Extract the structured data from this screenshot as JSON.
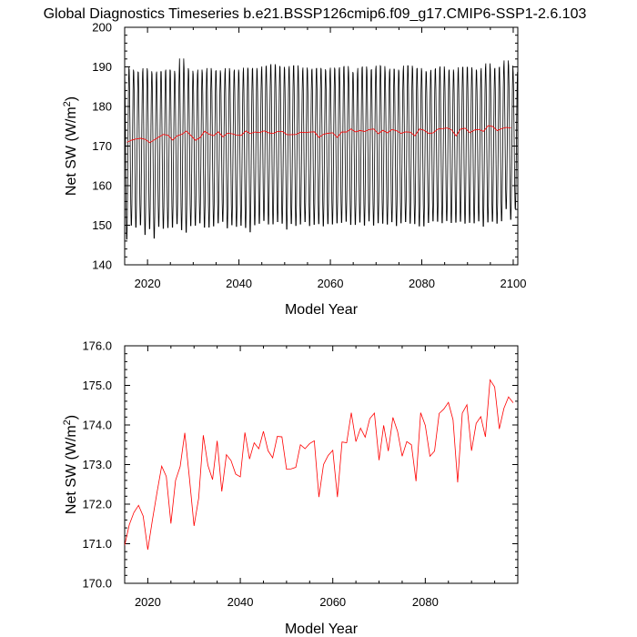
{
  "title": "Global Diagnostics Timeseries b.e21.BSSP126cmip6.f09_g17.CMIP6-SSP1-2.6.103",
  "chart_data": [
    {
      "type": "line",
      "name": "monthly-panel",
      "xlabel": "Model Year",
      "ylabel": "Net SW (W/m²)",
      "ylabel_main": "Net SW (W/m",
      "ylabel_sup": "2",
      "ylabel_tail": ")",
      "xlim": [
        2015,
        2101
      ],
      "ylim": [
        140,
        200
      ],
      "xticks": [
        "2020",
        "2040",
        "2060",
        "2080",
        "2100"
      ],
      "yticks": [
        "140",
        "150",
        "160",
        "170",
        "180",
        "190",
        "200"
      ],
      "series": [
        {
          "name": "monthly",
          "color": "#000000",
          "description": "seasonal cycle from 2015 to 2100",
          "annual_max": [
            190.6,
            190.0,
            189.4,
            189.3,
            190.4,
            189.6,
            188.9,
            189.5,
            189.5,
            190.0,
            189.7,
            188.8,
            192.9,
            190.4,
            189.7,
            188.8,
            190.0,
            189.1,
            190.4,
            189.6,
            189.8,
            189.0,
            190.4,
            189.4,
            190.0,
            189.2,
            190.5,
            190.1,
            190.4,
            189.6,
            190.8,
            190.9,
            191.4,
            190.8,
            190.7,
            190.1,
            190.9,
            191.1,
            189.6,
            190.5,
            189.8,
            190.2,
            190.4,
            190.1,
            189.6,
            190.5,
            190.0,
            190.6,
            190.9,
            189.4,
            189.0,
            190.4,
            190.8,
            189.8,
            190.1,
            191.0,
            190.9,
            189.3,
            190.2,
            190.0,
            189.5,
            191.0,
            191.0,
            190.2,
            190.4,
            189.6,
            189.2,
            189.9,
            190.3,
            190.8,
            189.6,
            190.0,
            189.2,
            190.6,
            190.6,
            190.6,
            190.0,
            189.5,
            190.4,
            191.6,
            190.1,
            190.4,
            190.7,
            192.3,
            191.0,
            189.3
          ],
          "annual_min": [
            145.7,
            149.3,
            148.8,
            149.4,
            146.9,
            148.4,
            146.0,
            149.0,
            148.5,
            148.7,
            148.8,
            149.7,
            148.1,
            147.5,
            149.2,
            149.3,
            149.9,
            148.8,
            148.8,
            149.1,
            149.9,
            150.3,
            148.6,
            149.4,
            149.0,
            149.3,
            148.7,
            147.6,
            149.4,
            149.8,
            150.5,
            149.6,
            149.6,
            150.2,
            149.8,
            148.3,
            149.7,
            149.2,
            149.6,
            150.2,
            149.2,
            149.5,
            149.7,
            149.1,
            149.7,
            149.6,
            149.9,
            150.0,
            150.3,
            149.5,
            149.5,
            150.1,
            149.3,
            150.4,
            149.3,
            149.9,
            149.8,
            149.6,
            150.2,
            149.2,
            149.9,
            150.2,
            149.8,
            149.7,
            149.1,
            149.1,
            150.0,
            150.4,
            150.3,
            149.9,
            150.5,
            150.0,
            150.1,
            150.3,
            149.8,
            150.0,
            149.9,
            150.4,
            149.0,
            150.1,
            150.3,
            149.8,
            150.4,
            153.5,
            150.8,
            153.6
          ]
        },
        {
          "name": "annual-mean",
          "color": "#ff0000",
          "values": [
            170.96,
            171.48,
            171.79,
            171.97,
            171.7,
            170.85,
            171.6,
            172.3,
            172.96,
            172.7,
            171.51,
            172.6,
            172.95,
            173.8,
            172.66,
            171.45,
            172.15,
            173.74,
            172.98,
            172.62,
            173.6,
            172.32,
            173.25,
            173.1,
            172.76,
            172.69,
            173.81,
            173.14,
            173.55,
            173.4,
            173.84,
            173.35,
            173.17,
            173.71,
            173.7,
            172.88,
            172.89,
            172.93,
            173.5,
            173.4,
            173.53,
            173.6,
            172.18,
            173.0,
            173.23,
            173.36,
            172.18,
            173.57,
            173.55,
            174.31,
            173.58,
            173.92,
            173.69,
            174.16,
            174.3,
            173.11,
            173.99,
            173.34,
            174.19,
            173.84,
            173.21,
            173.58,
            173.5,
            172.58,
            174.31,
            173.99,
            173.21,
            173.34,
            174.29,
            174.4,
            174.57,
            174.13,
            172.55,
            174.3,
            174.51,
            173.35,
            174.04,
            174.21,
            173.7,
            175.14,
            174.96,
            173.9,
            174.42,
            174.71,
            174.56
          ]
        }
      ]
    },
    {
      "type": "line",
      "name": "annual-panel",
      "xlabel": "Model Year",
      "ylabel": "Net SW (W/m²)",
      "ylabel_main": "Net SW (W/m",
      "ylabel_sup": "2",
      "ylabel_tail": ")",
      "xlim": [
        2015,
        2100
      ],
      "ylim": [
        170,
        176
      ],
      "xticks": [
        "2020",
        "2040",
        "2060",
        "2080"
      ],
      "yticks": [
        "170.0",
        "171.0",
        "172.0",
        "173.0",
        "174.0",
        "175.0",
        "176.0"
      ],
      "series": [
        {
          "name": "annual-mean",
          "color": "#ff0000",
          "start_year": 2015,
          "values": [
            170.96,
            171.48,
            171.79,
            171.97,
            171.7,
            170.85,
            171.6,
            172.3,
            172.96,
            172.7,
            171.51,
            172.6,
            172.95,
            173.8,
            172.66,
            171.45,
            172.15,
            173.74,
            172.98,
            172.62,
            173.6,
            172.32,
            173.25,
            173.1,
            172.76,
            172.69,
            173.81,
            173.14,
            173.55,
            173.4,
            173.84,
            173.35,
            173.17,
            173.71,
            173.7,
            172.88,
            172.89,
            172.93,
            173.5,
            173.4,
            173.53,
            173.6,
            172.18,
            173.0,
            173.23,
            173.36,
            172.18,
            173.57,
            173.55,
            174.31,
            173.58,
            173.92,
            173.69,
            174.16,
            174.3,
            173.11,
            173.99,
            173.34,
            174.19,
            173.84,
            173.21,
            173.58,
            173.5,
            172.58,
            174.31,
            173.99,
            173.21,
            173.34,
            174.29,
            174.4,
            174.57,
            174.13,
            172.55,
            174.3,
            174.51,
            173.35,
            174.04,
            174.21,
            173.7,
            175.14,
            174.96,
            173.9,
            174.42,
            174.71,
            174.56
          ]
        }
      ]
    }
  ]
}
